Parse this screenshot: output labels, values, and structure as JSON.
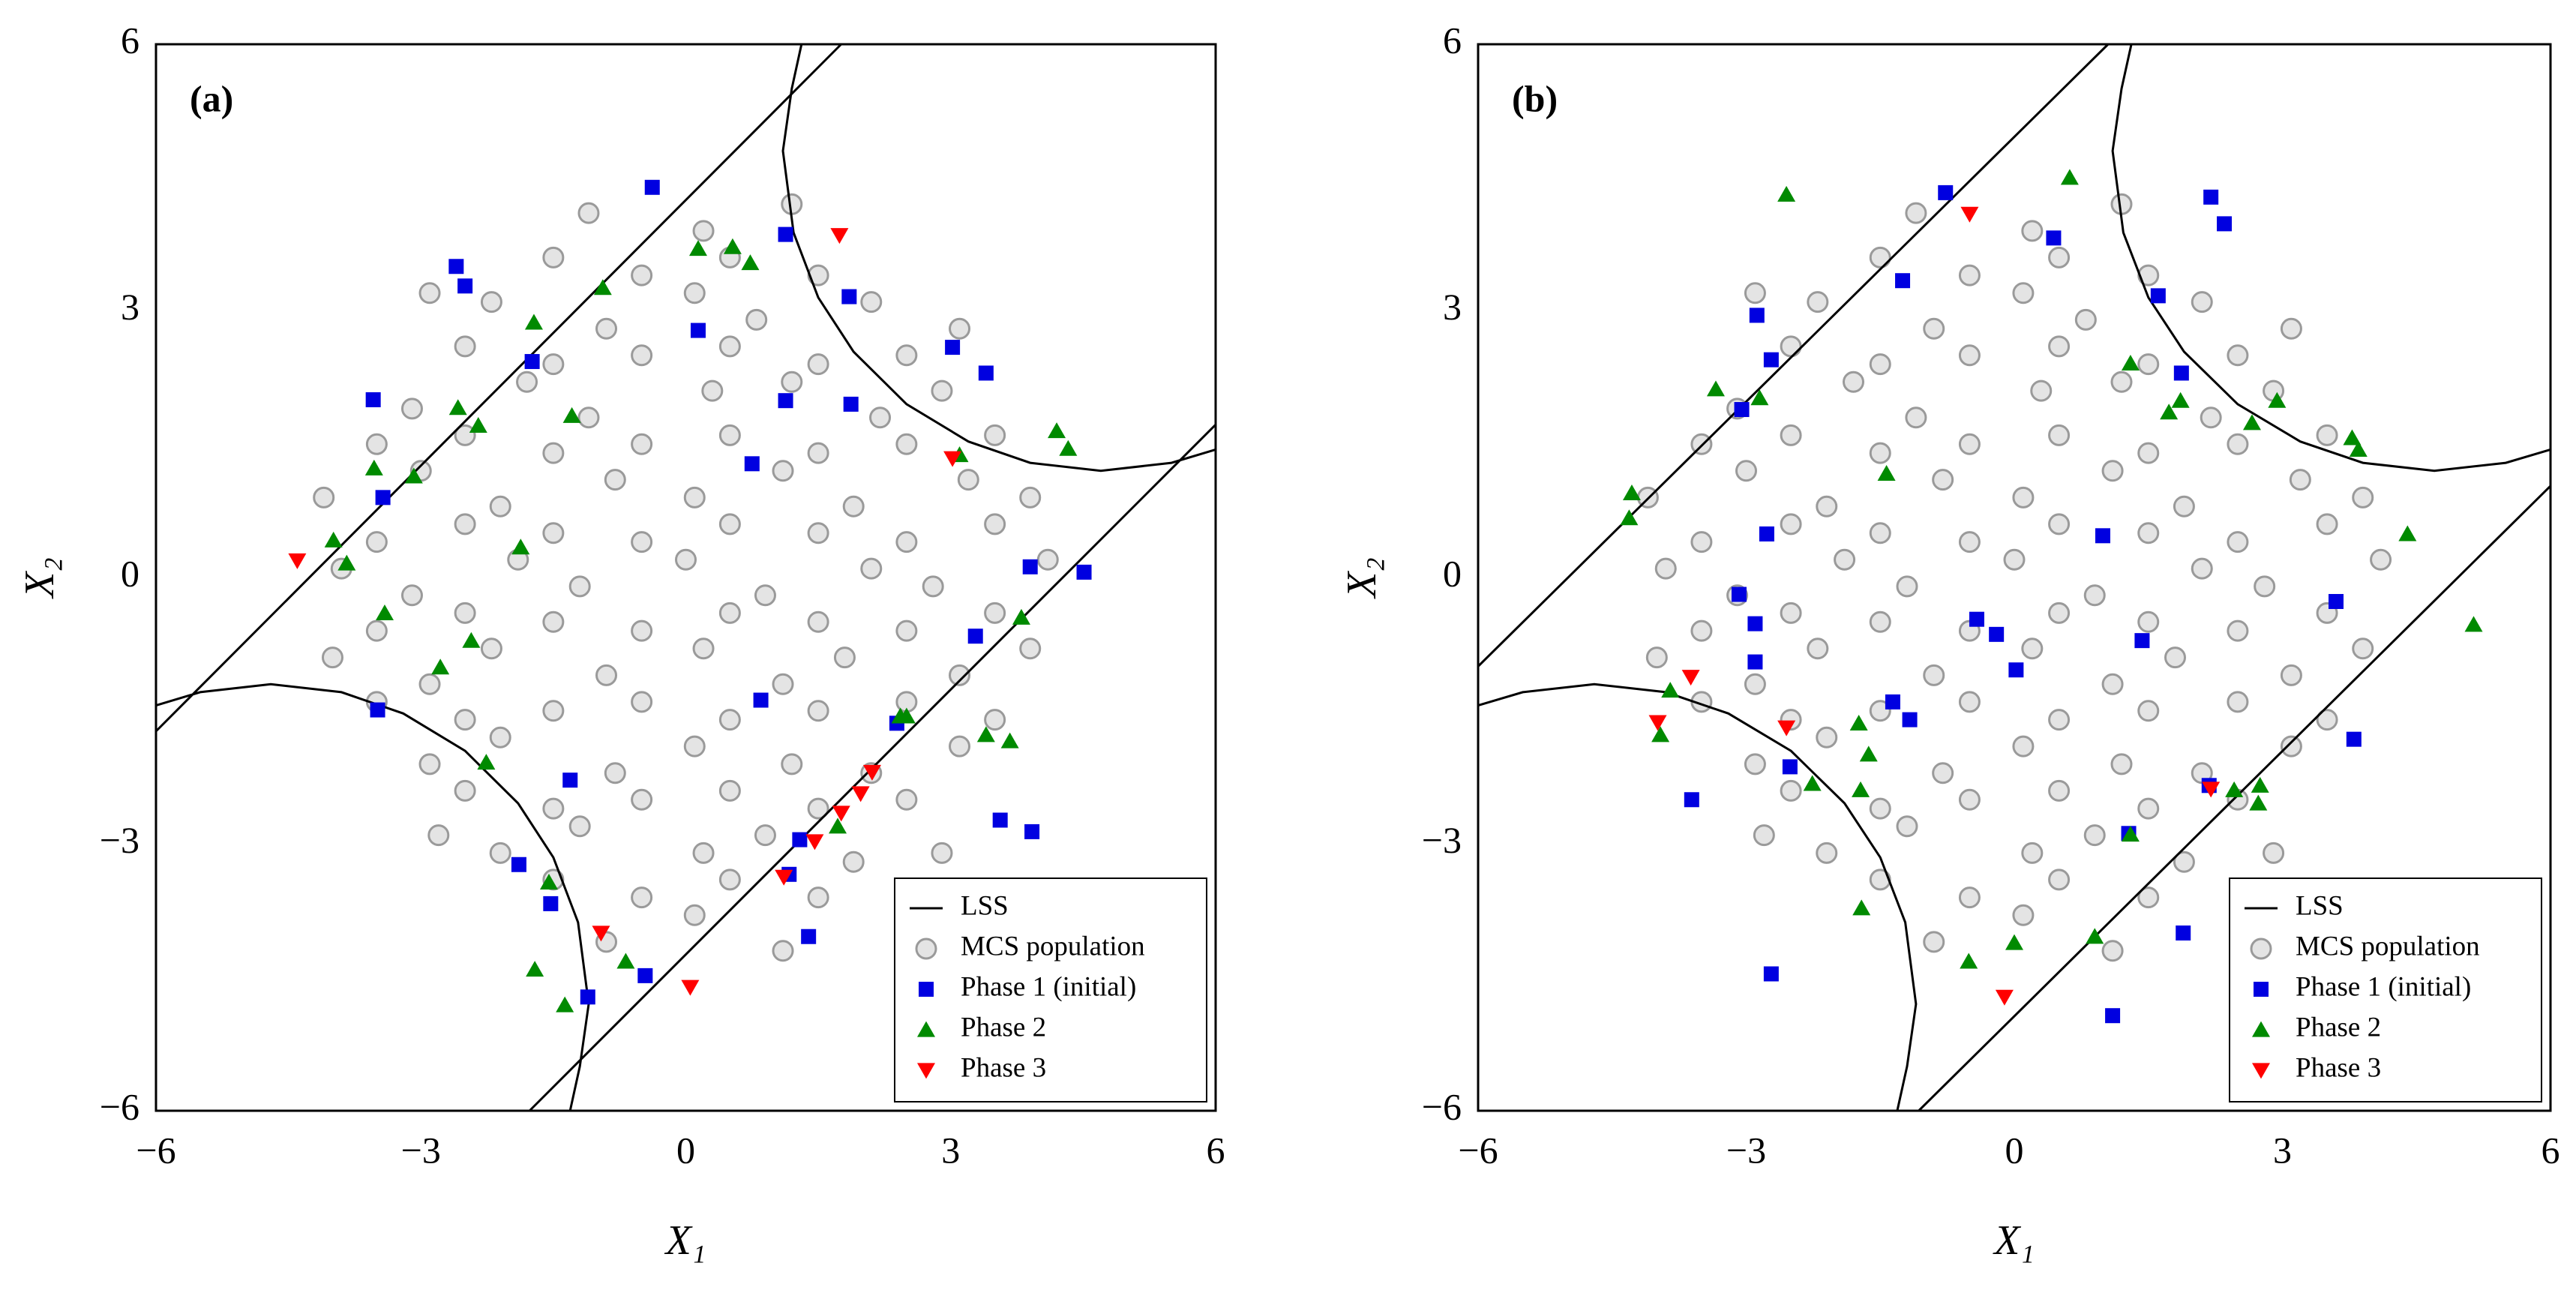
{
  "chart_data": [
    {
      "type": "scatter",
      "title": "(a)",
      "xlabel": "X₁",
      "ylabel": "X₂",
      "xlim": [
        -6,
        6
      ],
      "ylim": [
        -6,
        6
      ],
      "xticks": [
        {
          "value": -6,
          "label": "−6"
        },
        {
          "value": -3,
          "label": "−3"
        },
        0,
        3,
        6
      ],
      "yticks": [
        {
          "value": -6,
          "label": "−6"
        },
        {
          "value": -3,
          "label": "−3"
        },
        0,
        3,
        6
      ],
      "legend": "lower right",
      "series": [
        {
          "name": "LSS",
          "marker": "line",
          "color": "#000000",
          "x": [
            -6,
            1.76,
            null,
            -1.77,
            6,
            null,
            -6,
            -5.5,
            -4.7,
            -3.9,
            -3.2,
            -2.5,
            -1.9,
            -1.5,
            -1.22,
            -1.1,
            -1.2,
            -1.31,
            null,
            6,
            5.5,
            4.7,
            3.9,
            3.2,
            2.5,
            1.9,
            1.5,
            1.22,
            1.1,
            1.2,
            1.31
          ],
          "y": [
            -1.73,
            6,
            null,
            -6,
            1.72,
            null,
            -1.44,
            -1.29,
            -1.2,
            -1.29,
            -1.53,
            -1.95,
            -2.54,
            -3.15,
            -3.88,
            -4.8,
            -5.5,
            -6,
            null,
            1.44,
            1.29,
            1.2,
            1.29,
            1.53,
            1.95,
            2.54,
            3.15,
            3.88,
            4.8,
            5.5,
            6
          ]
        },
        {
          "name": "MCS population",
          "marker": "circle-open",
          "color": "#9a9a9a",
          "x": [
            -1.1,
            0.2,
            1.2,
            -2.9,
            -2.2,
            -0.9,
            0.1,
            0.8,
            2.1,
            3.1,
            -3.1,
            -1.8,
            -1.1,
            0.3,
            1.2,
            2.2,
            2.9,
            -4.1,
            -3,
            -2.1,
            -0.8,
            0.1,
            1.1,
            1.9,
            3.2,
            3.9,
            -3.9,
            -3.1,
            -1.9,
            -1.2,
            0,
            0.9,
            2.1,
            2.8,
            4.1,
            -4,
            -2.9,
            -2.2,
            -0.9,
            0.2,
            1.1,
            1.8,
            3.1,
            3.9,
            -2.9,
            -2.1,
            -0.8,
            0.1,
            1.2,
            2.1,
            3.1,
            -2.8,
            -2.1,
            -1.2,
            0.2,
            0.9,
            1.9,
            2.9,
            -0.9,
            0.1,
            1.1,
            -1.5,
            -0.5,
            0.5,
            1.5,
            -2.5,
            -1.5,
            -0.5,
            0.5,
            1.5,
            2.5,
            -3.5,
            -2.5,
            -1.5,
            -0.5,
            0.5,
            1.5,
            2.5,
            3.5,
            -3.5,
            -2.5,
            -1.5,
            -0.5,
            0.5,
            1.5,
            2.5,
            3.5,
            -3.5,
            -2.5,
            -1.5,
            -0.5,
            0.5,
            1.5,
            2.5,
            3.5,
            -3.5,
            -2.5,
            -1.5,
            -0.5,
            0.5,
            1.5,
            2.5,
            3.5,
            -2.5,
            -1.5,
            -0.5,
            0.5,
            1.5,
            2.5,
            -1.5,
            -0.5,
            0.5,
            1.5
          ],
          "y": [
            4.1,
            3.9,
            4.2,
            3.2,
            3.1,
            2.8,
            3.2,
            2.9,
            3.1,
            2.8,
            1.9,
            2.2,
            1.8,
            2.1,
            2.2,
            1.8,
            2.1,
            0.9,
            1.2,
            0.8,
            1.1,
            0.9,
            1.2,
            0.8,
            1.1,
            0.9,
            0.1,
            -0.2,
            0.2,
            -0.1,
            0.2,
            -0.2,
            0.1,
            -0.1,
            0.2,
            -0.9,
            -1.2,
            -0.8,
            -1.1,
            -0.8,
            -1.2,
            -0.9,
            -1.1,
            -0.8,
            -2.1,
            -1.8,
            -2.2,
            -1.9,
            -2.1,
            -2.2,
            -1.9,
            -2.9,
            -3.1,
            -2.8,
            -3.1,
            -2.9,
            -3.2,
            -3.1,
            -4.1,
            -3.8,
            -4.2,
            3.6,
            3.4,
            3.6,
            3.4,
            2.6,
            2.4,
            2.5,
            2.6,
            2.4,
            2.5,
            1.5,
            1.6,
            1.4,
            1.5,
            1.6,
            1.4,
            1.5,
            1.6,
            0.4,
            0.6,
            0.5,
            0.4,
            0.6,
            0.5,
            0.4,
            0.6,
            -0.6,
            -0.4,
            -0.5,
            -0.6,
            -0.4,
            -0.5,
            -0.6,
            -0.4,
            -1.4,
            -1.6,
            -1.5,
            -1.4,
            -1.6,
            -1.5,
            -1.4,
            -1.6,
            -2.4,
            -2.6,
            -2.5,
            -2.4,
            -2.6,
            -2.5,
            -3.4,
            -3.6,
            -3.4,
            -3.6
          ]
        },
        {
          "name": "Phase 1 (initial)",
          "marker": "square",
          "color": "#0000e0",
          "x": [
            -0.38,
            -2.6,
            -2.5,
            1.13,
            1.85,
            0.14,
            -1.74,
            -3.54,
            1.13,
            1.87,
            3.02,
            3.4,
            -3.43,
            0.75,
            3.9,
            4.51,
            3.28,
            0.85,
            -3.49,
            -1.31,
            2.39,
            3.56,
            3.92,
            1.29,
            1.17,
            -1.89,
            -1.53,
            1.39,
            -0.46,
            -1.11
          ],
          "y": [
            4.39,
            3.5,
            3.28,
            3.86,
            3.16,
            2.78,
            2.43,
            2.0,
            1.99,
            1.95,
            2.59,
            2.3,
            0.9,
            1.28,
            0.12,
            0.06,
            -0.66,
            -1.38,
            -1.49,
            -2.28,
            -1.64,
            -2.73,
            -2.86,
            -2.95,
            -3.34,
            -3.23,
            -3.67,
            -4.04,
            -4.48,
            -4.72
          ]
        },
        {
          "name": "Phase 2",
          "marker": "triangle-up",
          "color": "#008a00",
          "x": [
            -0.94,
            -1.72,
            0.14,
            0.53,
            0.73,
            -2.58,
            -2.35,
            -1.29,
            -3.08,
            -3.53,
            -3.99,
            -3.84,
            -1.87,
            -3.41,
            -2.43,
            -2.78,
            3.1,
            4.2,
            4.33,
            3.8,
            2.43,
            2.5,
            3.4,
            3.67,
            -2.26,
            1.72,
            -1.55,
            -1.71,
            -0.68,
            -1.37
          ],
          "y": [
            3.26,
            2.87,
            3.7,
            3.72,
            3.54,
            1.91,
            1.71,
            1.82,
            1.14,
            1.23,
            0.42,
            0.16,
            0.34,
            -0.4,
            -0.71,
            -1.01,
            1.38,
            1.65,
            1.45,
            -0.45,
            -1.56,
            -1.56,
            -1.77,
            -1.84,
            -2.08,
            -2.8,
            -3.43,
            -4.41,
            -4.32,
            -4.81
          ]
        },
        {
          "name": "Phase 3",
          "marker": "triangle-down",
          "color": "#ff0000",
          "x": [
            -4.4,
            1.74,
            3.02,
            2.11,
            1.98,
            1.76,
            1.46,
            1.11,
            -0.96,
            0.05
          ],
          "y": [
            0.19,
            3.85,
            1.34,
            -2.19,
            -2.43,
            -2.65,
            -2.97,
            -3.37,
            -4.0,
            -4.61
          ]
        }
      ]
    },
    {
      "type": "scatter",
      "title": "(b)",
      "xlabel": "X₁",
      "ylabel": "X₂",
      "xlim": [
        -6,
        6
      ],
      "ylim": [
        -6,
        6
      ],
      "xticks": [
        {
          "value": -6,
          "label": "−6"
        },
        {
          "value": -3,
          "label": "−3"
        },
        0,
        3,
        6
      ],
      "yticks": [
        {
          "value": -6,
          "label": "−6"
        },
        {
          "value": -3,
          "label": "−3"
        },
        0,
        3,
        6
      ],
      "legend": "lower right",
      "series": [
        {
          "name": "LSS",
          "marker": "line",
          "color": "#000000",
          "x": [
            -6,
            1.05,
            null,
            -1.07,
            6,
            null,
            -6,
            -5.5,
            -4.7,
            -3.9,
            -3.2,
            -2.5,
            -1.9,
            -1.5,
            -1.22,
            -1.1,
            -1.2,
            -1.31,
            null,
            6,
            5.5,
            4.7,
            3.9,
            3.2,
            2.5,
            1.9,
            1.5,
            1.22,
            1.1,
            1.2,
            1.31
          ],
          "y": [
            -1.0,
            6,
            null,
            -6,
            1.03,
            null,
            -1.44,
            -1.29,
            -1.2,
            -1.29,
            -1.53,
            -1.95,
            -2.54,
            -3.15,
            -3.88,
            -4.8,
            -5.5,
            -6,
            null,
            1.44,
            1.29,
            1.2,
            1.29,
            1.53,
            1.95,
            2.54,
            3.15,
            3.88,
            4.8,
            5.5,
            6
          ]
        },
        {
          "name": "MCS population",
          "marker": "circle-open",
          "color": "#9a9a9a",
          "x": [
            -1.1,
            0.2,
            1.2,
            -2.9,
            -2.2,
            -0.9,
            0.1,
            0.8,
            2.1,
            3.1,
            -3.1,
            -1.8,
            -1.1,
            0.3,
            1.2,
            2.2,
            2.9,
            -4.1,
            -3,
            -2.1,
            -0.8,
            0.1,
            1.1,
            1.9,
            3.2,
            3.9,
            -3.9,
            -3.1,
            -1.9,
            -1.2,
            0,
            0.9,
            2.1,
            2.8,
            4.1,
            -4,
            -2.9,
            -2.2,
            -0.9,
            0.2,
            1.1,
            1.8,
            3.1,
            3.9,
            -2.9,
            -2.1,
            -0.8,
            0.1,
            1.2,
            2.1,
            3.1,
            -2.8,
            -2.1,
            -1.2,
            0.2,
            0.9,
            1.9,
            2.9,
            -0.9,
            0.1,
            1.1,
            -1.5,
            -0.5,
            0.5,
            1.5,
            -2.5,
            -1.5,
            -0.5,
            0.5,
            1.5,
            2.5,
            -3.5,
            -2.5,
            -1.5,
            -0.5,
            0.5,
            1.5,
            2.5,
            3.5,
            -3.5,
            -2.5,
            -1.5,
            -0.5,
            0.5,
            1.5,
            2.5,
            3.5,
            -3.5,
            -2.5,
            -1.5,
            -0.5,
            0.5,
            1.5,
            2.5,
            3.5,
            -3.5,
            -2.5,
            -1.5,
            -0.5,
            0.5,
            1.5,
            2.5,
            3.5,
            -2.5,
            -1.5,
            -0.5,
            0.5,
            1.5,
            2.5,
            -1.5,
            -0.5,
            0.5,
            1.5
          ],
          "y": [
            4.1,
            3.9,
            4.2,
            3.2,
            3.1,
            2.8,
            3.2,
            2.9,
            3.1,
            2.8,
            1.9,
            2.2,
            1.8,
            2.1,
            2.2,
            1.8,
            2.1,
            0.9,
            1.2,
            0.8,
            1.1,
            0.9,
            1.2,
            0.8,
            1.1,
            0.9,
            0.1,
            -0.2,
            0.2,
            -0.1,
            0.2,
            -0.2,
            0.1,
            -0.1,
            0.2,
            -0.9,
            -1.2,
            -0.8,
            -1.1,
            -0.8,
            -1.2,
            -0.9,
            -1.1,
            -0.8,
            -2.1,
            -1.8,
            -2.2,
            -1.9,
            -2.1,
            -2.2,
            -1.9,
            -2.9,
            -3.1,
            -2.8,
            -3.1,
            -2.9,
            -3.2,
            -3.1,
            -4.1,
            -3.8,
            -4.2,
            3.6,
            3.4,
            3.6,
            3.4,
            2.6,
            2.4,
            2.5,
            2.6,
            2.4,
            2.5,
            1.5,
            1.6,
            1.4,
            1.5,
            1.6,
            1.4,
            1.5,
            1.6,
            0.4,
            0.6,
            0.5,
            0.4,
            0.6,
            0.5,
            0.4,
            0.6,
            -0.6,
            -0.4,
            -0.5,
            -0.6,
            -0.4,
            -0.5,
            -0.6,
            -0.4,
            -1.4,
            -1.6,
            -1.5,
            -1.4,
            -1.6,
            -1.5,
            -1.4,
            -1.6,
            -2.4,
            -2.6,
            -2.5,
            -2.4,
            -2.6,
            -2.5,
            -3.4,
            -3.6,
            -3.4,
            -3.6
          ]
        },
        {
          "name": "Phase 1 (initial)",
          "marker": "square",
          "color": "#0000e0",
          "x": [
            -0.77,
            2.2,
            2.35,
            0.44,
            -1.25,
            1.61,
            -2.88,
            -2.72,
            -3.05,
            1.87,
            -2.77,
            0.99,
            -3.08,
            3.6,
            -2.9,
            -0.42,
            -0.2,
            1.43,
            0.02,
            -2.9,
            -1.36,
            -1.17,
            3.8,
            -2.51,
            -3.61,
            2.18,
            1.28,
            1.89,
            -2.72,
            1.1
          ],
          "y": [
            4.33,
            4.28,
            3.98,
            3.82,
            3.34,
            3.17,
            2.95,
            2.45,
            1.89,
            2.3,
            0.49,
            0.47,
            -0.19,
            -0.27,
            -0.52,
            -0.47,
            -0.64,
            -0.71,
            -1.04,
            -0.95,
            -1.4,
            -1.6,
            -1.82,
            -2.13,
            -2.5,
            -2.34,
            -2.88,
            -4.0,
            -4.46,
            -4.93
          ]
        },
        {
          "name": "Phase 2",
          "marker": "triangle-up",
          "color": "#008a00",
          "x": [
            -2.55,
            0.62,
            -3.34,
            -2.85,
            1.3,
            1.86,
            1.73,
            2.94,
            2.66,
            3.78,
            3.85,
            -1.43,
            -4.28,
            -4.31,
            4.4,
            5.14,
            -3.85,
            -3.96,
            -1.74,
            -1.63,
            -2.26,
            -1.72,
            2.46,
            2.75,
            2.73,
            1.3,
            -1.71,
            0,
            0.9,
            -0.51
          ],
          "y": [
            4.31,
            4.5,
            2.12,
            2.02,
            2.41,
            1.99,
            1.86,
            1.99,
            1.74,
            1.57,
            1.44,
            1.17,
            0.95,
            0.67,
            0.49,
            -0.53,
            -1.27,
            -1.77,
            -1.64,
            -1.99,
            -2.32,
            -2.39,
            -2.39,
            -2.34,
            -2.54,
            -2.89,
            -3.72,
            -4.11,
            -4.04,
            -4.32
          ]
        },
        {
          "name": "Phase 3",
          "marker": "triangle-down",
          "color": "#ff0000",
          "x": [
            -0.5,
            -3.62,
            -3.99,
            -2.55,
            2.2,
            -0.11
          ],
          "y": [
            4.09,
            -1.12,
            -1.63,
            -1.69,
            -2.38,
            -4.72
          ]
        }
      ]
    }
  ]
}
